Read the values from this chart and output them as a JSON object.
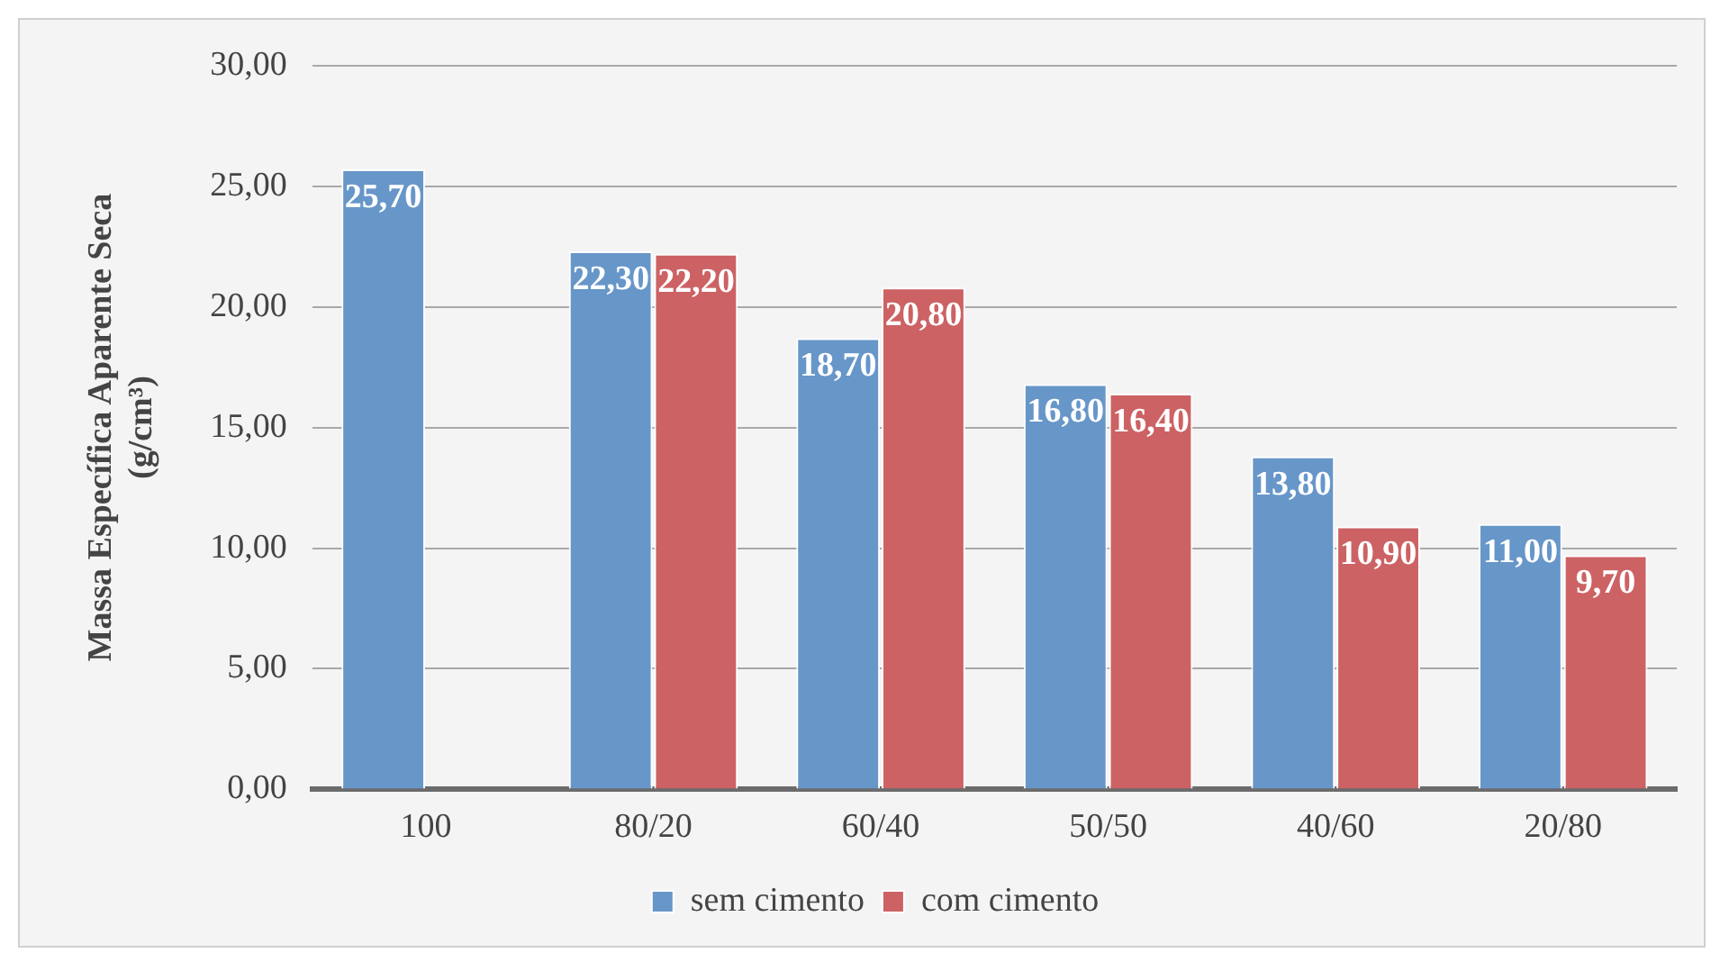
{
  "chart_data": {
    "type": "bar",
    "categories": [
      "100",
      "80/20",
      "60/40",
      "50/50",
      "40/60",
      "20/80"
    ],
    "ylabel": "Massa Específica Aparente Seca (g/cm³)",
    "series": [
      {
        "name": "sem cimento",
        "color": "#6796c9",
        "values": [
          25.7,
          22.3,
          18.7,
          16.8,
          13.8,
          11.0
        ],
        "value_labels": [
          "25,70",
          "22,30",
          "18,70",
          "16,80",
          "13,80",
          "11,00"
        ]
      },
      {
        "name": "com cimento",
        "color": "#cc6264",
        "values": [
          null,
          22.2,
          20.8,
          16.4,
          10.9,
          9.7
        ],
        "value_labels": [
          null,
          "22,20",
          "20,80",
          "16,40",
          "10,90",
          "9,70"
        ]
      }
    ],
    "ylim": [
      0,
      30
    ],
    "yticks": [
      {
        "value": 0,
        "label": "0,00"
      },
      {
        "value": 5,
        "label": "5,00"
      },
      {
        "value": 10,
        "label": "10,00"
      },
      {
        "value": 15,
        "label": "15,00"
      },
      {
        "value": 20,
        "label": "20,00"
      },
      {
        "value": 25,
        "label": "25,00"
      },
      {
        "value": 30,
        "label": "30,00"
      }
    ],
    "grid": "y",
    "legend": "bottom"
  }
}
